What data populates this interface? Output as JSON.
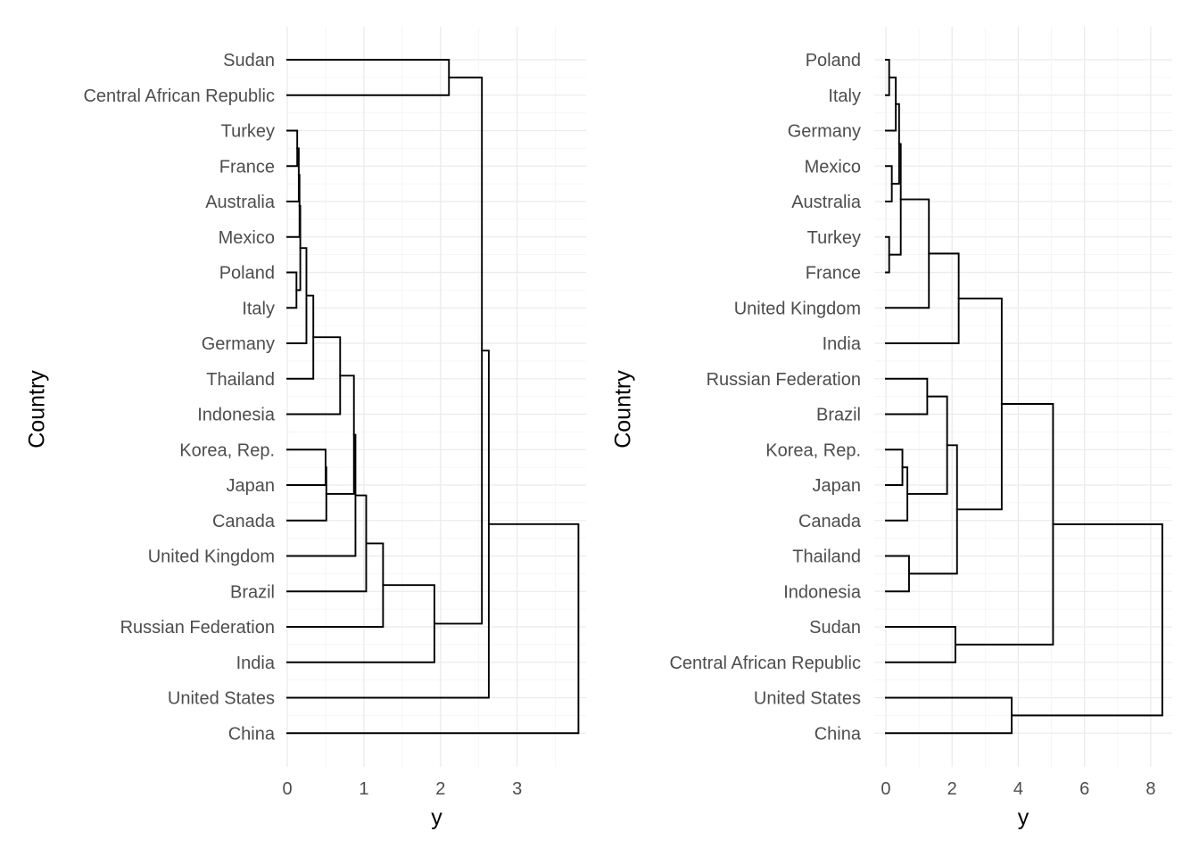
{
  "chart_data": [
    {
      "type": "dendrogram",
      "orientation": "horizontal",
      "xlabel": "y",
      "ylabel": "Country",
      "xlim": [
        0,
        3.9
      ],
      "xticks": [
        0,
        1,
        2,
        3
      ],
      "grid": true,
      "leaves": [
        "Sudan",
        "Central African Republic",
        "Turkey",
        "France",
        "Australia",
        "Mexico",
        "Poland",
        "Italy",
        "Germany",
        "Thailand",
        "Indonesia",
        "Korea, Rep.",
        "Japan",
        "Canada",
        "United Kingdom",
        "Brazil",
        "Russian Federation",
        "India",
        "United States",
        "China"
      ],
      "merges": [
        {
          "children": [
            "Turkey",
            "France"
          ],
          "height": 0.13
        },
        {
          "children": [
            0,
            "Australia"
          ],
          "height": 0.15
        },
        {
          "children": [
            1,
            "Mexico"
          ],
          "height": 0.16
        },
        {
          "children": [
            "Poland",
            "Italy"
          ],
          "height": 0.12
        },
        {
          "children": [
            2,
            3
          ],
          "height": 0.17
        },
        {
          "children": [
            4,
            "Germany"
          ],
          "height": 0.25
        },
        {
          "children": [
            5,
            "Thailand"
          ],
          "height": 0.34
        },
        {
          "children": [
            6,
            "Indonesia"
          ],
          "height": 0.69
        },
        {
          "children": [
            "Korea, Rep.",
            "Japan"
          ],
          "height": 0.5
        },
        {
          "children": [
            8,
            "Canada"
          ],
          "height": 0.51
        },
        {
          "children": [
            7,
            9
          ],
          "height": 0.87
        },
        {
          "children": [
            10,
            "United Kingdom"
          ],
          "height": 0.89
        },
        {
          "children": [
            11,
            "Brazil"
          ],
          "height": 1.03
        },
        {
          "children": [
            12,
            "Russian Federation"
          ],
          "height": 1.25
        },
        {
          "children": [
            13,
            "India"
          ],
          "height": 1.92
        },
        {
          "children": [
            "Sudan",
            "Central African Republic"
          ],
          "height": 2.11
        },
        {
          "children": [
            15,
            14
          ],
          "height": 2.54
        },
        {
          "children": [
            16,
            "United States"
          ],
          "height": 2.63
        },
        {
          "children": [
            17,
            "China"
          ],
          "height": 3.8
        }
      ]
    },
    {
      "type": "dendrogram",
      "orientation": "horizontal",
      "xlabel": "y",
      "ylabel": "Country",
      "xlim": [
        -0.35,
        8.65
      ],
      "xticks": [
        0,
        2,
        4,
        6,
        8
      ],
      "grid": true,
      "leaves": [
        "Poland",
        "Italy",
        "Germany",
        "Mexico",
        "Australia",
        "Turkey",
        "France",
        "United Kingdom",
        "India",
        "Russian Federation",
        "Brazil",
        "Korea, Rep.",
        "Japan",
        "Canada",
        "Thailand",
        "Indonesia",
        "Sudan",
        "Central African Republic",
        "United States",
        "China"
      ],
      "merges": [
        {
          "children": [
            "Poland",
            "Italy"
          ],
          "height": 0.1
        },
        {
          "children": [
            0,
            "Germany"
          ],
          "height": 0.3
        },
        {
          "children": [
            "Mexico",
            "Australia"
          ],
          "height": 0.18
        },
        {
          "children": [
            2,
            1
          ],
          "height": 0.4
        },
        {
          "children": [
            "Turkey",
            "France"
          ],
          "height": 0.1
        },
        {
          "children": [
            3,
            4
          ],
          "height": 0.45
        },
        {
          "children": [
            5,
            "United Kingdom"
          ],
          "height": 1.3
        },
        {
          "children": [
            6,
            "India"
          ],
          "height": 2.2
        },
        {
          "children": [
            "Russian Federation",
            "Brazil"
          ],
          "height": 1.25
        },
        {
          "children": [
            "Korea, Rep.",
            "Japan"
          ],
          "height": 0.5
        },
        {
          "children": [
            9,
            "Canada"
          ],
          "height": 0.65
        },
        {
          "children": [
            8,
            10
          ],
          "height": 1.85
        },
        {
          "children": [
            "Thailand",
            "Indonesia"
          ],
          "height": 0.7
        },
        {
          "children": [
            11,
            12
          ],
          "height": 2.15
        },
        {
          "children": [
            7,
            13
          ],
          "height": 3.5
        },
        {
          "children": [
            "Sudan",
            "Central African Republic"
          ],
          "height": 2.1
        },
        {
          "children": [
            14,
            15
          ],
          "height": 5.05
        },
        {
          "children": [
            "United States",
            "China"
          ],
          "height": 3.8
        },
        {
          "children": [
            16,
            17
          ],
          "height": 8.35
        }
      ]
    }
  ]
}
